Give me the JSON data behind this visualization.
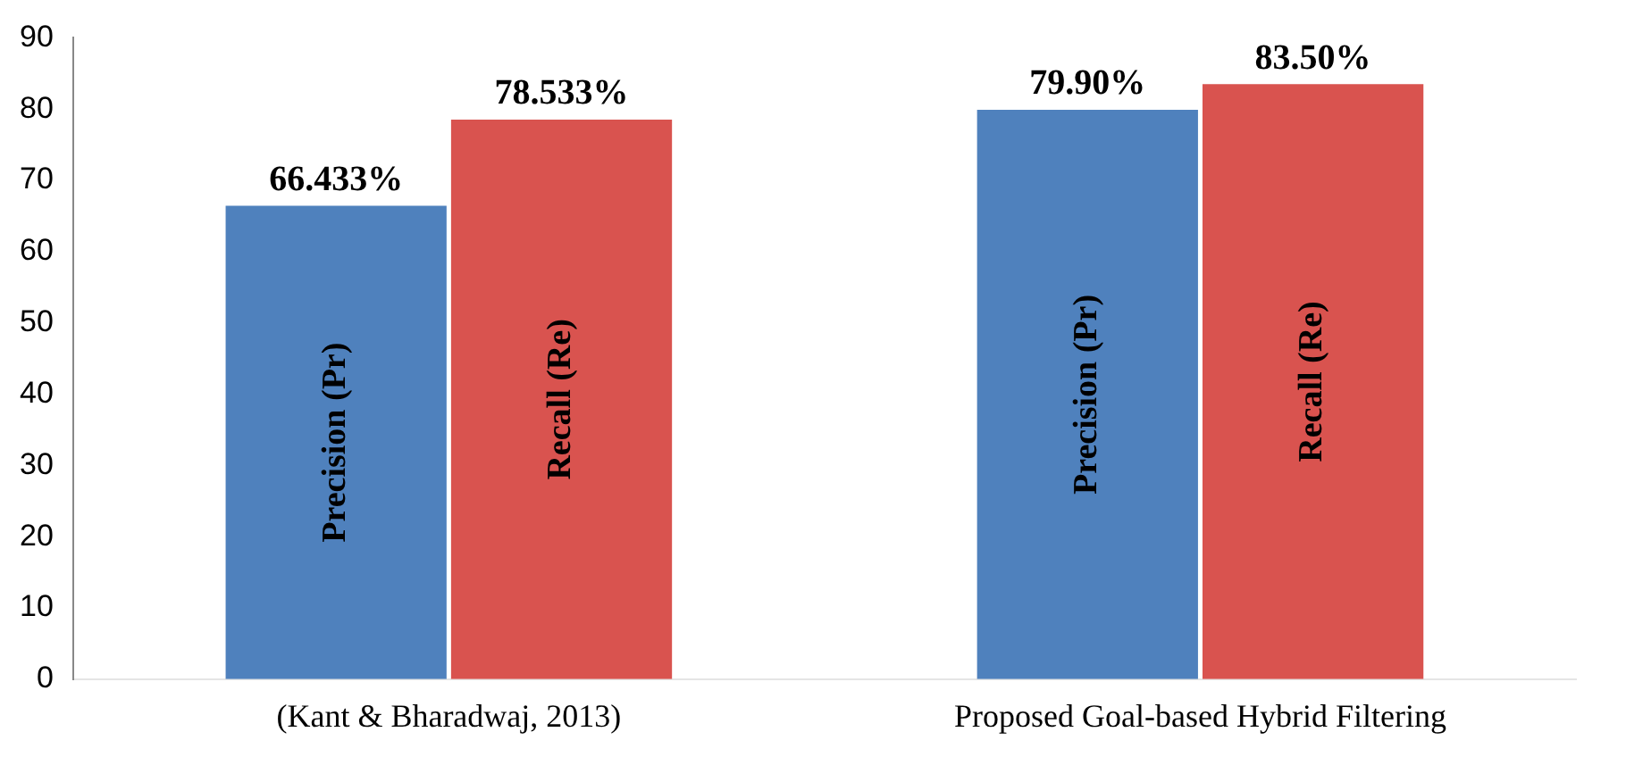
{
  "chart_data": {
    "type": "bar",
    "categories": [
      "(Kant & Bharadwaj, 2013)",
      "Proposed Goal-based Hybrid Filtering"
    ],
    "series": [
      {
        "name": "Precision (Pr)",
        "color": "#4f81bd",
        "values": [
          66.433,
          79.9
        ],
        "value_labels": [
          "66.433%",
          "79.90%"
        ]
      },
      {
        "name": "Recall (Re)",
        "color": "#d9534f",
        "values": [
          78.533,
          83.5
        ],
        "value_labels": [
          "78.533%",
          "83.50%"
        ]
      }
    ],
    "ylim": [
      0,
      90
    ],
    "yticks": [
      0,
      10,
      20,
      30,
      40,
      50,
      60,
      70,
      80,
      90
    ],
    "grid": false,
    "legend": false
  }
}
